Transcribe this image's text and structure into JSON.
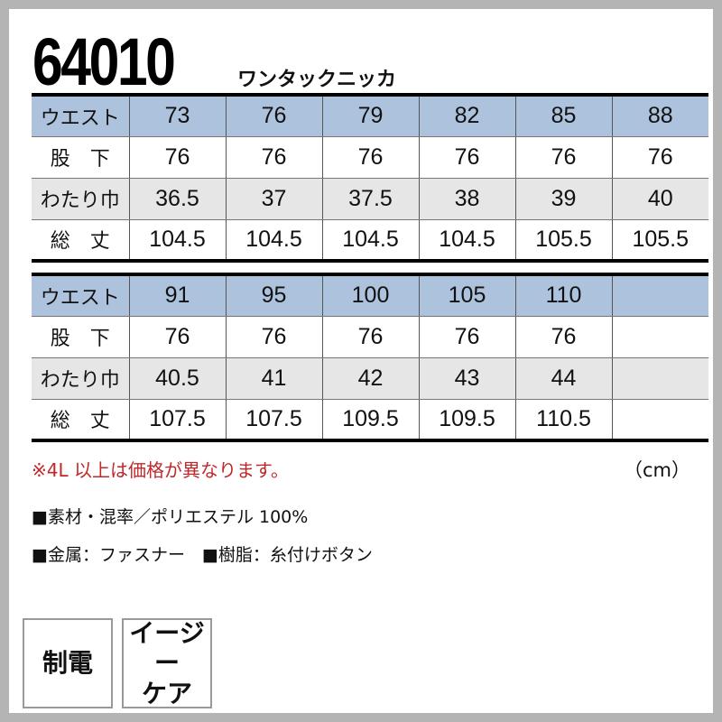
{
  "header": {
    "model": "64010",
    "name": "ワンタックニッカ"
  },
  "table1": {
    "rows": [
      {
        "label": "ウエスト",
        "values": [
          "73",
          "76",
          "79",
          "82",
          "85",
          "88"
        ]
      },
      {
        "label": "股　下",
        "values": [
          "76",
          "76",
          "76",
          "76",
          "76",
          "76"
        ]
      },
      {
        "label": "わたり巾",
        "values": [
          "36.5",
          "37",
          "37.5",
          "38",
          "39",
          "40"
        ]
      },
      {
        "label": "総　丈",
        "values": [
          "104.5",
          "104.5",
          "104.5",
          "104.5",
          "105.5",
          "105.5"
        ]
      }
    ]
  },
  "table2": {
    "rows": [
      {
        "label": "ウエスト",
        "values": [
          "91",
          "95",
          "100",
          "105",
          "110",
          ""
        ]
      },
      {
        "label": "股　下",
        "values": [
          "76",
          "76",
          "76",
          "76",
          "76",
          ""
        ]
      },
      {
        "label": "わたり巾",
        "values": [
          "40.5",
          "41",
          "42",
          "43",
          "44",
          ""
        ]
      },
      {
        "label": "総　丈",
        "values": [
          "107.5",
          "107.5",
          "109.5",
          "109.5",
          "110.5",
          ""
        ]
      }
    ]
  },
  "note": "※4L 以上は価格が異なります。",
  "unit": "（cm）",
  "specs": [
    "■素材・混率／ポリエステル 100%",
    "■金属：ファスナー　■樹脂：糸付けボタン"
  ],
  "badges": [
    "制電",
    "イージー\nケア"
  ],
  "colors": {
    "header_row": "#adc2dc",
    "alt_row": "#e6e6e6",
    "note": "#c0282a"
  }
}
